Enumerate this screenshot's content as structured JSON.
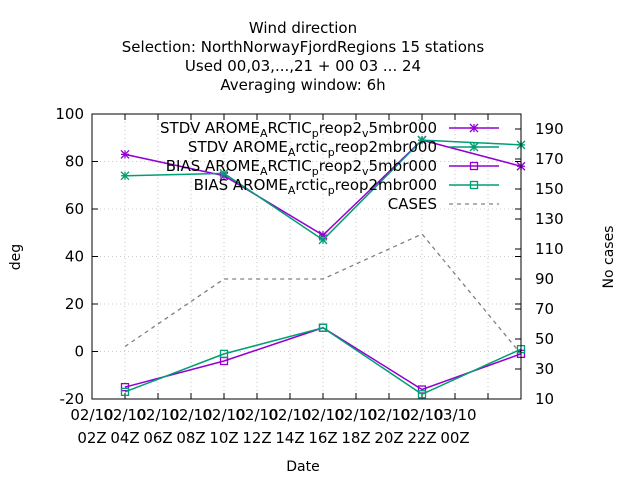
{
  "chart_data": {
    "type": "line",
    "title_lines": [
      "Wind direction",
      "Selection: NorthNorwayFjordRegions     15 stations",
      "Used  00,03,...,21  + 00 03 ... 24",
      "Averaging window:  6h"
    ],
    "xlabel": "Date",
    "ylabel": "deg",
    "y2label": "No cases",
    "x_hours": [
      0,
      3,
      6,
      9,
      12,
      15,
      18,
      21,
      24
    ],
    "x_tick_hours": [
      0,
      2,
      4,
      6,
      8,
      10,
      12,
      14,
      16,
      18,
      20,
      22,
      24
    ],
    "x_ticks": [
      [
        "02/10",
        "02Z"
      ],
      [
        "02/10",
        "04Z"
      ],
      [
        "02/10",
        "06Z"
      ],
      [
        "02/10",
        "08Z"
      ],
      [
        "02/10",
        "10Z"
      ],
      [
        "02/10",
        "12Z"
      ],
      [
        "02/10",
        "14Z"
      ],
      [
        "02/10",
        "16Z"
      ],
      [
        "02/10",
        "18Z"
      ],
      [
        "02/10",
        "20Z"
      ],
      [
        "02/10",
        "22Z"
      ],
      [
        "03/10",
        "00Z"
      ]
    ],
    "x_range_hours": [
      0,
      26
    ],
    "ylim": [
      -20,
      100
    ],
    "y_ticks": [
      -20,
      0,
      20,
      40,
      60,
      80,
      100
    ],
    "y2lim": [
      10,
      200
    ],
    "y2_ticks": [
      10,
      30,
      50,
      70,
      90,
      110,
      130,
      150,
      170,
      190
    ],
    "grid": true,
    "legend_position": "top-right",
    "series": [
      {
        "name": "STDV AROME_ARCTIC_preop2_v5mbr000",
        "legend": [
          "STDV AROME",
          "A",
          "RCTIC",
          "p",
          "reop2",
          "v",
          "5mbr000"
        ],
        "color": "#9400d3",
        "marker": "star",
        "axis": "y",
        "x": [
          2,
          8,
          14,
          20,
          26
        ],
        "values": [
          83,
          74,
          49,
          89,
          78
        ]
      },
      {
        "name": "STDV AROME_Arctic_preop2mbr000",
        "legend": [
          "STDV AROME",
          "A",
          "rctic",
          "p",
          "reop2mbr000"
        ],
        "color": "#009e73",
        "marker": "star",
        "axis": "y",
        "x": [
          2,
          8,
          14,
          20,
          26
        ],
        "values": [
          74,
          75,
          47,
          89,
          87
        ]
      },
      {
        "name": "BIAS AROME_ARCTIC_preop2_v5mbr000",
        "legend": [
          "BIAS AROME",
          "A",
          "RCTIC",
          "p",
          "reop2",
          "v",
          "5mbr000"
        ],
        "color": "#9400d3",
        "marker": "square",
        "axis": "y",
        "x": [
          2,
          8,
          14,
          20,
          26
        ],
        "values": [
          -15,
          -4,
          10,
          -16,
          -1
        ]
      },
      {
        "name": "BIAS AROME_Arctic_preop2mbr000",
        "legend": [
          "BIAS AROME",
          "A",
          "rctic",
          "p",
          "reop2mbr000"
        ],
        "color": "#009e73",
        "marker": "square",
        "axis": "y",
        "x": [
          2,
          8,
          14,
          20,
          26
        ],
        "values": [
          -17,
          -1,
          10,
          -18,
          1
        ]
      },
      {
        "name": "CASES",
        "legend": [
          "CASES"
        ],
        "color": "#808080",
        "marker": "none",
        "dash": true,
        "axis": "y2",
        "x": [
          2,
          8,
          14,
          20,
          26
        ],
        "values": [
          45,
          90,
          90,
          120,
          40
        ]
      }
    ]
  }
}
